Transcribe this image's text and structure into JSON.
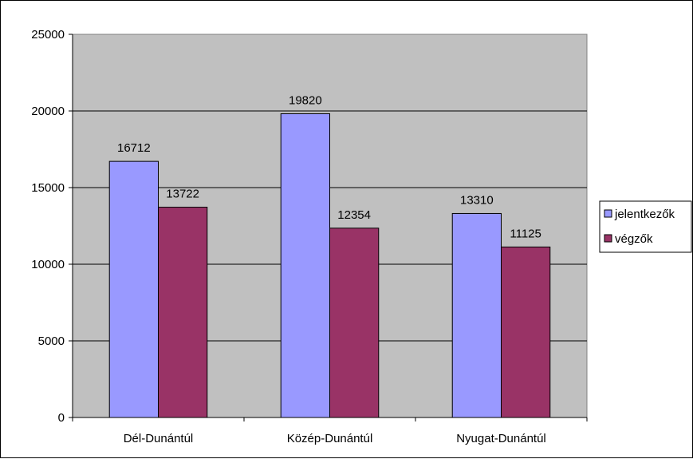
{
  "chart_data": {
    "type": "bar",
    "title": "",
    "xlabel": "",
    "ylabel": "",
    "categories": [
      "Dél-Dunántúl",
      "Közép-Dunántúl",
      "Nyugat-Dunántúl"
    ],
    "series": [
      {
        "name": "jelentkezők",
        "color": "#9999ff",
        "values": [
          16712,
          19820,
          13310
        ]
      },
      {
        "name": "végzők",
        "color": "#993366",
        "values": [
          13722,
          12354,
          11125
        ]
      }
    ],
    "ylim": [
      0,
      25000
    ],
    "yticks": [
      0,
      5000,
      10000,
      15000,
      20000,
      25000
    ],
    "grid": true,
    "data_labels": true,
    "legend_position": "right",
    "plot_background": "#c0c0c0"
  }
}
